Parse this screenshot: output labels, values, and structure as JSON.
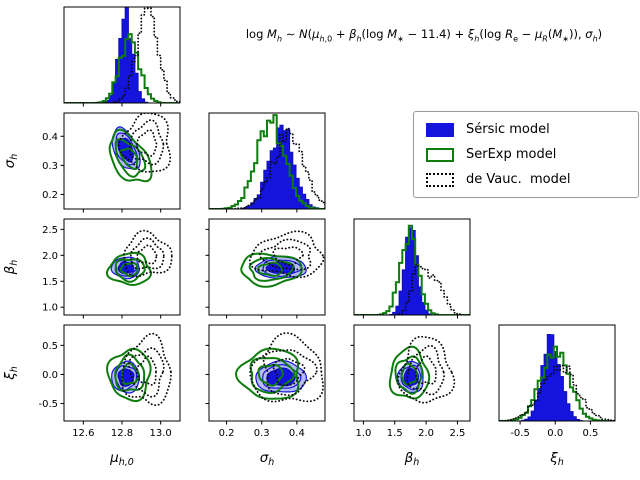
{
  "title": {
    "equation_html": "log <i>M<sub>h</sub></i> ∼ <i>N</i>(<i>μ</i><sub><i>h</i>,0</sub> + <i>β<sub>h</sub></i>(log <i>M</i><sub>∗</sub> − 11.4) + <i>ξ<sub>h</sub></i>(log <i>R</i><sub>e</sub> − <i>μ<sub>R</sub></i>(<i>M</i><sub>∗</sub>)), <i>σ<sub>h</sub></i>)"
  },
  "legend": {
    "entries": [
      {
        "id": "sersic",
        "label": "Sérsic model"
      },
      {
        "id": "serexp",
        "label": "SerExp model"
      },
      {
        "id": "devauc",
        "label": "de Vauc.  model"
      }
    ]
  },
  "chart_data": {
    "type": "corner-plot",
    "description": "Posterior corner plot of halo-mass relation parameters for three photometric models",
    "parameters": [
      {
        "id": "mu_h0",
        "symbol": "μ",
        "subscript": "h,0",
        "range": [
          12.5,
          13.1
        ],
        "tick_values": [
          12.6,
          12.8,
          13.0
        ],
        "tick_labels": [
          "12.6",
          "12.8",
          "13.0"
        ]
      },
      {
        "id": "sigma_h",
        "symbol": "σ",
        "subscript": "h",
        "range": [
          0.15,
          0.48
        ],
        "tick_values": [
          0.2,
          0.3,
          0.4
        ],
        "tick_labels": [
          "0.2",
          "0.3",
          "0.4"
        ]
      },
      {
        "id": "beta_h",
        "symbol": "β",
        "subscript": "h",
        "range": [
          0.85,
          2.7
        ],
        "tick_values": [
          1.0,
          1.5,
          2.0,
          2.5
        ],
        "tick_labels": [
          "1.0",
          "1.5",
          "2.0",
          "2.5"
        ]
      },
      {
        "id": "xi_h",
        "symbol": "ξ",
        "subscript": "h",
        "range": [
          -0.8,
          0.85
        ],
        "tick_values": [
          -0.5,
          0.0,
          0.5
        ],
        "tick_labels": [
          "-0.5",
          "0.0",
          "0.5"
        ]
      }
    ],
    "models": [
      {
        "id": "sersic",
        "label": "Sérsic model",
        "style": "filled",
        "color": "#1414dd",
        "fill_light": "#b6bbf2",
        "edge": "#0f0fb4"
      },
      {
        "id": "serexp",
        "label": "SerExp model",
        "style": "solid",
        "color": "#0e7d0e"
      },
      {
        "id": "devauc",
        "label": "de Vauc.  model",
        "style": "dotted",
        "color": "#0a0a0a"
      }
    ],
    "posteriors": {
      "sersic": {
        "mu_h0": {
          "mean": 12.82,
          "sd": 0.035
        },
        "sigma_h": {
          "mean": 0.355,
          "sd": 0.035
        },
        "beta_h": {
          "mean": 1.76,
          "sd": 0.1
        },
        "xi_h": {
          "mean": -0.05,
          "sd": 0.13
        }
      },
      "serexp": {
        "mu_h0": {
          "mean": 12.84,
          "sd": 0.05
        },
        "sigma_h": {
          "mean": 0.325,
          "sd": 0.04
        },
        "beta_h": {
          "mean": 1.73,
          "sd": 0.14
        },
        "xi_h": {
          "mean": 0.0,
          "sd": 0.2
        }
      },
      "devauc": {
        "mu_h0": {
          "mean": 12.93,
          "sd": 0.055
        },
        "sigma_h": {
          "mean": 0.375,
          "sd": 0.045
        },
        "beta_h": {
          "mean": 2.0,
          "sd": 0.18,
          "mix": [
            {
              "mean": 1.87,
              "sd": 0.1,
              "w": 0.6
            },
            {
              "mean": 2.16,
              "sd": 0.13,
              "w": 0.5
            }
          ]
        },
        "xi_h": {
          "mean": 0.05,
          "sd": 0.25
        }
      }
    },
    "correlations": {
      "sersic": {
        "mu_h0|sigma_h": -0.45
      },
      "serexp": {
        "mu_h0|sigma_h": -0.45
      },
      "devauc": {}
    },
    "hist_peaks": {
      "mu_h0": {
        "sersic": 0.95,
        "serexp": 0.74,
        "devauc": 0.97
      },
      "sigma_h": {
        "sersic": 0.88,
        "serexp": 0.97,
        "devauc": 0.78
      },
      "beta_h": {
        "sersic": 0.96,
        "serexp": 0.9,
        "devauc": 0.62
      },
      "xi_h": {
        "sersic": 0.95,
        "serexp": 0.78,
        "devauc": 0.6
      }
    }
  }
}
